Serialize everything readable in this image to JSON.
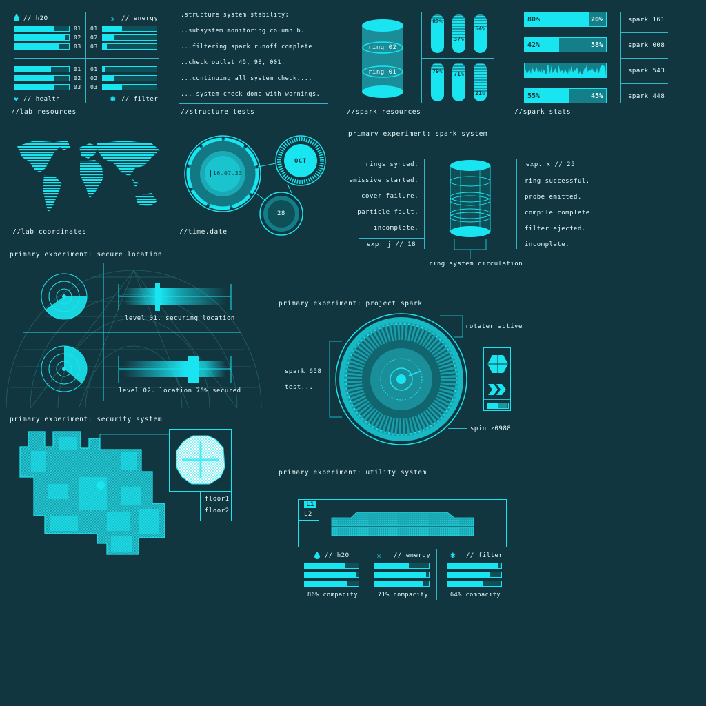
{
  "lab_resources": {
    "h2o_label": "// h2O",
    "energy_label": "// energy",
    "health_label": "// health",
    "filter_label": "// filter",
    "row_labels": [
      "01",
      "02",
      "03"
    ],
    "h2o": [
      0.73,
      0.93,
      0.81
    ],
    "energy": [
      0.36,
      0.22,
      0.08
    ],
    "health": [
      0.67,
      0.73,
      0.73
    ],
    "filter": [
      0.05,
      0.22,
      0.36
    ],
    "caption": "//lab resources"
  },
  "structure_tests": {
    "lines": [
      ".structure system stability;",
      "..subsystem monitoring column b.",
      "...filtering spark runoff complete.",
      "..check outlet 45, 98, 001.",
      "...continuing all system check....",
      "....system check done with warnings."
    ],
    "caption": "//structure tests"
  },
  "spark_resources": {
    "ring_top": "ring 02",
    "ring_bottom": "ring 01",
    "pills_top": [
      "82%",
      "37%",
      "64%"
    ],
    "pills_top_values": [
      0.82,
      0.37,
      0.64
    ],
    "pills_bottom": [
      "79%",
      "71%",
      "21%"
    ],
    "pills_bottom_values": [
      0.79,
      0.71,
      0.21
    ],
    "caption": "//spark resources"
  },
  "spark_stats": {
    "bars": [
      {
        "left": "80%",
        "right": "20%",
        "value": 0.8
      },
      {
        "left": "42%",
        "right": "58%",
        "value": 0.42
      },
      {
        "left": "",
        "right": "",
        "value": 1.0
      },
      {
        "left": "55%",
        "right": "45%",
        "value": 0.55
      }
    ],
    "labels": [
      "spark 161",
      "spark 008",
      "spark 543",
      "spark 448"
    ],
    "caption": "//spark stats"
  },
  "lab_coordinates": {
    "caption": "//lab coordinates"
  },
  "time_date": {
    "date": "16.07.33",
    "month": "OCT",
    "day": "28",
    "caption": "//time.date"
  },
  "spark_system": {
    "title": "primary experiment: spark system",
    "left_lines": [
      "rings synced.",
      "emissive started.",
      "cover failure.",
      "particle fault.",
      "incomplete."
    ],
    "left_footer": "exp. j // 18",
    "right_header": "exp. x // 25",
    "right_lines": [
      "ring successful.",
      "probe emitted.",
      "compile complete.",
      "filter ejected.",
      "incomplete."
    ],
    "caption": "ring system circulation"
  },
  "secure_location": {
    "title": "primary experiment: secure location",
    "level1": "level 01. securing location",
    "level2": "level 02. location 76% secured"
  },
  "project_spark": {
    "title": "primary experiment: project spark",
    "rotater": "rotater active",
    "spark_label": "spark 658",
    "test_label": "test...",
    "spin": "spin z0988"
  },
  "security_system": {
    "title": "primary experiment: security system",
    "floor1": "floor1",
    "floor2": "floor2"
  },
  "utility_system": {
    "title": "primary experiment: utility system",
    "tabs": [
      "L1",
      "L2"
    ],
    "columns": [
      {
        "label": "// h2O",
        "values": [
          0.75,
          0.95,
          0.8
        ],
        "caption": "86% compacity"
      },
      {
        "label": "// energy",
        "values": [
          0.63,
          0.95,
          0.9
        ],
        "caption": "71% compacity"
      },
      {
        "label": "// filter",
        "values": [
          0.95,
          0.8,
          0.65
        ],
        "caption": "64% compacity"
      }
    ]
  },
  "colors": {
    "background": "#11363f",
    "accent": "#19e5f1",
    "line": "#2fb7c4"
  }
}
